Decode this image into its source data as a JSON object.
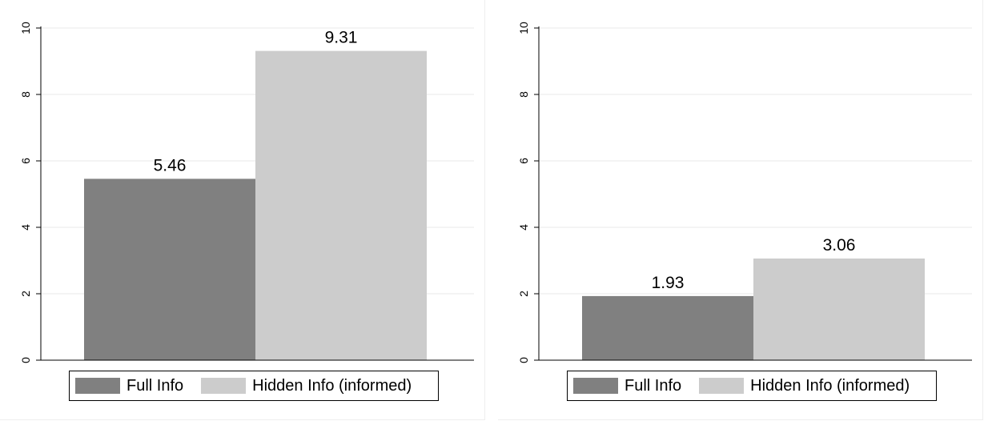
{
  "chart_data": [
    {
      "type": "bar",
      "categories": [
        "Full Info",
        "Hidden Info (informed)"
      ],
      "values": [
        5.46,
        9.31
      ],
      "data_labels": [
        "5.46",
        "9.31"
      ],
      "ylim": [
        0,
        10
      ],
      "yticks": [
        "0",
        "2",
        "4",
        "6",
        "8",
        "10"
      ],
      "grid": true,
      "legend_position": "bottom",
      "colors": [
        "#808080",
        "#cccccc"
      ],
      "title": "",
      "xlabel": "",
      "ylabel": ""
    },
    {
      "type": "bar",
      "categories": [
        "Full Info",
        "Hidden Info (informed)"
      ],
      "values": [
        1.93,
        3.06
      ],
      "data_labels": [
        "1.93",
        "3.06"
      ],
      "ylim": [
        0,
        10
      ],
      "yticks": [
        "0",
        "2",
        "4",
        "6",
        "8",
        "10"
      ],
      "grid": true,
      "legend_position": "bottom",
      "colors": [
        "#808080",
        "#cccccc"
      ],
      "title": "",
      "xlabel": "",
      "ylabel": ""
    }
  ]
}
